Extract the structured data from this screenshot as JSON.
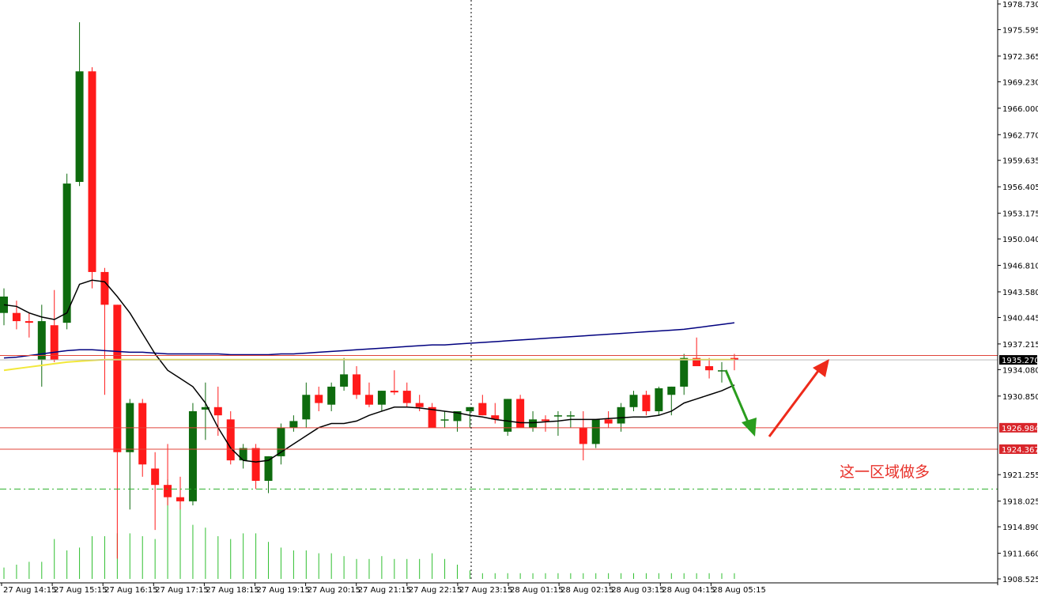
{
  "colors": {
    "bull_candle": "#0e6b0e",
    "bear_candle": "#ff1a1a",
    "volume": "#2fbf2f",
    "ma_short": "#000000",
    "ma_long": "#00007f",
    "ma_yellow": "#f2e83a",
    "level_line": "#e0443a",
    "level_label_bg": "#d9262b",
    "current_label_bg": "#000000",
    "target_line": "#2bb02b",
    "arrow_green": "#2a9d1e",
    "arrow_red": "#ee2a1a",
    "annotation_text": "#e8322b"
  },
  "chart_data": {
    "type": "candlestick",
    "ylim": [
      1908.525,
      1978.73
    ],
    "y_ticks": [
      "1978.730",
      "1975.595",
      "1972.365",
      "1969.230",
      "1966.000",
      "1962.770",
      "1959.635",
      "1956.405",
      "1953.175",
      "1950.040",
      "1946.810",
      "1943.580",
      "1940.445",
      "1937.215",
      "1934.080",
      "1930.850",
      "1921.255",
      "1918.025",
      "1914.890",
      "1911.660",
      "1908.525"
    ],
    "x_ticks": [
      "27 Aug 14:15",
      "27 Aug 15:15",
      "27 Aug 16:15",
      "27 Aug 17:15",
      "27 Aug 18:15",
      "27 Aug 19:15",
      "27 Aug 20:15",
      "27 Aug 21:15",
      "27 Aug 22:15",
      "27 Aug 23:15",
      "28 Aug 01:15",
      "28 Aug 02:15",
      "28 Aug 03:15",
      "28 Aug 04:15",
      "28 Aug 05:15"
    ],
    "candles": [
      {
        "o": 1941.0,
        "h": 1944.0,
        "l": 1939.5,
        "c": 1943.0
      },
      {
        "o": 1941.0,
        "h": 1942.5,
        "l": 1939.0,
        "c": 1940.0
      },
      {
        "o": 1940.0,
        "h": 1941.0,
        "l": 1938.0,
        "c": 1939.8
      },
      {
        "o": 1935.3,
        "h": 1942.0,
        "l": 1932.0,
        "c": 1940.0
      },
      {
        "o": 1939.5,
        "h": 1943.8,
        "l": 1935.0,
        "c": 1935.3
      },
      {
        "o": 1939.8,
        "h": 1958.0,
        "l": 1939.0,
        "c": 1956.8
      },
      {
        "o": 1957.0,
        "h": 1976.5,
        "l": 1956.5,
        "c": 1970.5
      },
      {
        "o": 1970.5,
        "h": 1971.0,
        "l": 1944.0,
        "c": 1946.0
      },
      {
        "o": 1946.0,
        "h": 1946.5,
        "l": 1931.0,
        "c": 1942.0
      },
      {
        "o": 1942.0,
        "h": 1942.0,
        "l": 1911.0,
        "c": 1924.0
      },
      {
        "o": 1924.0,
        "h": 1930.5,
        "l": 1917.0,
        "c": 1930.0
      },
      {
        "o": 1930.0,
        "h": 1930.5,
        "l": 1921.0,
        "c": 1922.5
      },
      {
        "o": 1922.0,
        "h": 1924.0,
        "l": 1914.5,
        "c": 1920.0
      },
      {
        "o": 1920.0,
        "h": 1925.0,
        "l": 1917.5,
        "c": 1918.5
      },
      {
        "o": 1918.5,
        "h": 1921.0,
        "l": 1917.0,
        "c": 1918.0
      },
      {
        "o": 1918.0,
        "h": 1930.0,
        "l": 1917.5,
        "c": 1929.0
      },
      {
        "o": 1929.2,
        "h": 1932.5,
        "l": 1925.5,
        "c": 1929.5
      },
      {
        "o": 1929.5,
        "h": 1932.0,
        "l": 1926.0,
        "c": 1928.5
      },
      {
        "o": 1928.0,
        "h": 1929.0,
        "l": 1922.5,
        "c": 1923.0
      },
      {
        "o": 1923.0,
        "h": 1925.0,
        "l": 1922.0,
        "c": 1924.5
      },
      {
        "o": 1924.5,
        "h": 1925.0,
        "l": 1919.5,
        "c": 1920.5
      },
      {
        "o": 1920.5,
        "h": 1923.5,
        "l": 1919.0,
        "c": 1923.5
      },
      {
        "o": 1923.5,
        "h": 1927.5,
        "l": 1922.5,
        "c": 1927.0
      },
      {
        "o": 1927.0,
        "h": 1928.5,
        "l": 1926.5,
        "c": 1927.8
      },
      {
        "o": 1928.0,
        "h": 1932.5,
        "l": 1927.0,
        "c": 1931.0
      },
      {
        "o": 1931.0,
        "h": 1932.0,
        "l": 1929.0,
        "c": 1930.0
      },
      {
        "o": 1929.8,
        "h": 1932.5,
        "l": 1929.0,
        "c": 1932.0
      },
      {
        "o": 1932.0,
        "h": 1935.5,
        "l": 1931.5,
        "c": 1933.5
      },
      {
        "o": 1933.5,
        "h": 1934.5,
        "l": 1930.5,
        "c": 1931.0
      },
      {
        "o": 1931.0,
        "h": 1932.5,
        "l": 1929.5,
        "c": 1929.8
      },
      {
        "o": 1929.8,
        "h": 1931.5,
        "l": 1929.0,
        "c": 1931.5
      },
      {
        "o": 1931.5,
        "h": 1934.0,
        "l": 1931.0,
        "c": 1931.3
      },
      {
        "o": 1931.5,
        "h": 1932.5,
        "l": 1929.5,
        "c": 1930.0
      },
      {
        "o": 1930.0,
        "h": 1931.0,
        "l": 1929.0,
        "c": 1929.5
      },
      {
        "o": 1929.5,
        "h": 1930.0,
        "l": 1927.0,
        "c": 1927.0
      },
      {
        "o": 1928.0,
        "h": 1929.0,
        "l": 1927.0,
        "c": 1928.0
      },
      {
        "o": 1927.8,
        "h": 1929.0,
        "l": 1926.5,
        "c": 1929.0
      },
      {
        "o": 1929.0,
        "h": 1929.5,
        "l": 1927.0,
        "c": 1929.5
      },
      {
        "o": 1930.0,
        "h": 1931.0,
        "l": 1928.5,
        "c": 1928.5
      },
      {
        "o": 1928.5,
        "h": 1930.0,
        "l": 1927.5,
        "c": 1928.0
      },
      {
        "o": 1926.5,
        "h": 1930.5,
        "l": 1926.0,
        "c": 1930.5
      },
      {
        "o": 1930.5,
        "h": 1931.0,
        "l": 1927.0,
        "c": 1927.0
      },
      {
        "o": 1927.0,
        "h": 1929.0,
        "l": 1926.5,
        "c": 1928.0
      },
      {
        "o": 1928.0,
        "h": 1928.5,
        "l": 1926.5,
        "c": 1927.8
      },
      {
        "o": 1928.5,
        "h": 1929.0,
        "l": 1926.0,
        "c": 1928.5
      },
      {
        "o": 1928.5,
        "h": 1929.0,
        "l": 1927.0,
        "c": 1928.5
      },
      {
        "o": 1927.0,
        "h": 1929.0,
        "l": 1923.0,
        "c": 1925.0
      },
      {
        "o": 1925.0,
        "h": 1928.0,
        "l": 1924.5,
        "c": 1928.0
      },
      {
        "o": 1928.0,
        "h": 1929.0,
        "l": 1927.0,
        "c": 1927.5
      },
      {
        "o": 1927.5,
        "h": 1930.0,
        "l": 1926.5,
        "c": 1929.5
      },
      {
        "o": 1929.5,
        "h": 1931.5,
        "l": 1929.0,
        "c": 1931.0
      },
      {
        "o": 1931.0,
        "h": 1931.5,
        "l": 1928.5,
        "c": 1929.0
      },
      {
        "o": 1929.0,
        "h": 1932.0,
        "l": 1928.5,
        "c": 1931.8
      },
      {
        "o": 1931.0,
        "h": 1932.0,
        "l": 1928.5,
        "c": 1932.0
      },
      {
        "o": 1932.0,
        "h": 1936.0,
        "l": 1931.0,
        "c": 1935.5
      },
      {
        "o": 1935.5,
        "h": 1938.0,
        "l": 1934.5,
        "c": 1934.5
      },
      {
        "o": 1934.5,
        "h": 1935.5,
        "l": 1933.0,
        "c": 1934.0
      },
      {
        "o": 1934.0,
        "h": 1935.0,
        "l": 1932.5,
        "c": 1934.0
      },
      {
        "o": 1935.5,
        "h": 1936.0,
        "l": 1934.0,
        "c": 1935.3
      }
    ],
    "volumes": [
      8,
      10,
      12,
      12,
      28,
      20,
      22,
      30,
      30,
      32,
      32,
      30,
      28,
      70,
      55,
      38,
      36,
      30,
      28,
      32,
      32,
      26,
      22,
      20,
      20,
      18,
      18,
      16,
      14,
      14,
      16,
      14,
      14,
      14,
      18,
      14,
      10,
      6,
      4,
      4,
      4,
      4,
      4,
      4,
      4,
      4,
      4,
      4,
      4,
      4,
      4,
      4,
      4,
      4,
      4,
      4,
      4,
      4,
      4
    ],
    "indicators": {
      "ma_short": [
        1942.0,
        1941.8,
        1941.0,
        1940.5,
        1940.2,
        1941.0,
        1944.5,
        1945.0,
        1944.8,
        1943.0,
        1941.0,
        1938.5,
        1936.0,
        1934.0,
        1933.0,
        1932.0,
        1930.0,
        1927.0,
        1924.5,
        1923.0,
        1922.8,
        1923.0,
        1924.0,
        1925.0,
        1926.0,
        1927.0,
        1927.5,
        1927.5,
        1927.8,
        1928.5,
        1929.0,
        1929.5,
        1929.5,
        1929.4,
        1929.2,
        1929.0,
        1928.8,
        1928.5,
        1928.3,
        1928.0,
        1927.8,
        1927.6,
        1927.6,
        1927.7,
        1927.8,
        1928.0,
        1928.0,
        1928.0,
        1928.1,
        1928.2,
        1928.3,
        1928.3,
        1928.5,
        1929.0,
        1930.0,
        1930.5,
        1931.0,
        1931.5,
        1932.2
      ],
      "ma_long": [
        1935.5,
        1935.6,
        1935.8,
        1936.0,
        1936.2,
        1936.4,
        1936.5,
        1936.5,
        1936.4,
        1936.3,
        1936.2,
        1936.2,
        1936.1,
        1936.0,
        1936.0,
        1936.0,
        1936.0,
        1936.0,
        1935.9,
        1935.9,
        1935.9,
        1935.9,
        1936.0,
        1936.0,
        1936.1,
        1936.2,
        1936.3,
        1936.4,
        1936.5,
        1936.6,
        1936.7,
        1936.8,
        1936.9,
        1937.0,
        1937.1,
        1937.1,
        1937.2,
        1937.3,
        1937.4,
        1937.5,
        1937.6,
        1937.7,
        1937.8,
        1937.9,
        1938.0,
        1938.1,
        1938.2,
        1938.3,
        1938.4,
        1938.5,
        1938.6,
        1938.7,
        1938.8,
        1938.9,
        1939.0,
        1939.2,
        1939.4,
        1939.6,
        1939.8
      ],
      "ma_yellow": [
        1934.0,
        1934.2,
        1934.4,
        1934.6,
        1934.8,
        1935.0,
        1935.1,
        1935.2,
        1935.3,
        1935.3,
        1935.3,
        1935.3,
        1935.3,
        1935.3,
        1935.3,
        1935.3,
        1935.3,
        1935.3,
        1935.3,
        1935.3,
        1935.3,
        1935.3,
        1935.3,
        1935.3,
        1935.3,
        1935.3,
        1935.3,
        1935.3,
        1935.3,
        1935.3,
        1935.3,
        1935.3,
        1935.3,
        1935.3,
        1935.3,
        1935.3,
        1935.3,
        1935.3,
        1935.3,
        1935.3,
        1935.3,
        1935.3,
        1935.3,
        1935.3,
        1935.3,
        1935.3,
        1935.3,
        1935.3,
        1935.3,
        1935.3,
        1935.3,
        1935.3,
        1935.3,
        1935.3,
        1935.3,
        1935.3,
        1935.3,
        1935.3,
        1935.3
      ]
    },
    "levels": [
      {
        "value": 1935.8,
        "label": "",
        "style": "solid"
      },
      {
        "value": 1935.27,
        "label": "1935.270",
        "style": "current"
      },
      {
        "value": 1926.984,
        "label": "1926.984",
        "style": "solid"
      },
      {
        "value": 1924.367,
        "label": "1924.367",
        "style": "solid"
      },
      {
        "value": 1919.5,
        "label": "",
        "style": "dashdot"
      }
    ],
    "annotation": "这一区域做多"
  }
}
